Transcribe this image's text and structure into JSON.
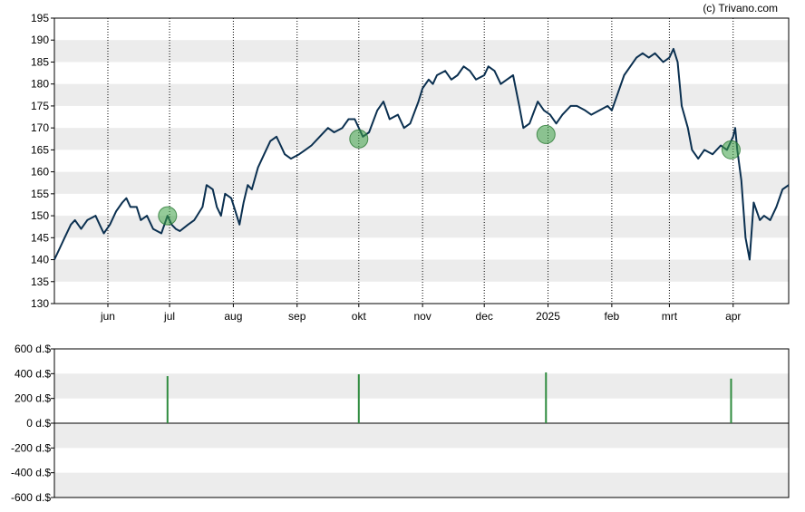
{
  "credit": "(c) Trivano.com",
  "chart_data": [
    {
      "type": "line",
      "title": "",
      "grid": true,
      "ylim": [
        130,
        195
      ],
      "yticks": [
        195,
        190,
        185,
        180,
        175,
        170,
        165,
        160,
        155,
        150,
        145,
        140,
        135,
        130
      ],
      "xlim": [
        "2024-05-06",
        "2025-04-28"
      ],
      "month_ticks": [
        {
          "label": "jun",
          "date": "2024-06-01"
        },
        {
          "label": "jul",
          "date": "2024-07-01"
        },
        {
          "label": "aug",
          "date": "2024-08-01"
        },
        {
          "label": "sep",
          "date": "2024-09-01"
        },
        {
          "label": "okt",
          "date": "2024-10-01"
        },
        {
          "label": "nov",
          "date": "2024-11-01"
        },
        {
          "label": "dec",
          "date": "2024-12-01"
        },
        {
          "label": "2025",
          "date": "2025-01-01"
        },
        {
          "label": "feb",
          "date": "2025-02-01"
        },
        {
          "label": "mrt",
          "date": "2025-03-01"
        },
        {
          "label": "apr",
          "date": "2025-04-01"
        }
      ],
      "series": [
        {
          "color": "#0b3050",
          "x": [
            "2024-05-06",
            "2024-05-09",
            "2024-05-11",
            "2024-05-14",
            "2024-05-16",
            "2024-05-19",
            "2024-05-22",
            "2024-05-26",
            "2024-05-28",
            "2024-05-30",
            "2024-06-02",
            "2024-06-05",
            "2024-06-08",
            "2024-06-10",
            "2024-06-12",
            "2024-06-15",
            "2024-06-17",
            "2024-06-20",
            "2024-06-23",
            "2024-06-27",
            "2024-06-30",
            "2024-07-02",
            "2024-07-04",
            "2024-07-06",
            "2024-07-10",
            "2024-07-13",
            "2024-07-17",
            "2024-07-19",
            "2024-07-22",
            "2024-07-24",
            "2024-07-26",
            "2024-07-28",
            "2024-07-31",
            "2024-08-02",
            "2024-08-04",
            "2024-08-06",
            "2024-08-08",
            "2024-08-10",
            "2024-08-13",
            "2024-08-16",
            "2024-08-19",
            "2024-08-22",
            "2024-08-24",
            "2024-08-26",
            "2024-08-29",
            "2024-09-02",
            "2024-09-05",
            "2024-09-08",
            "2024-09-12",
            "2024-09-16",
            "2024-09-19",
            "2024-09-23",
            "2024-09-26",
            "2024-09-29",
            "2024-10-03",
            "2024-10-06",
            "2024-10-10",
            "2024-10-13",
            "2024-10-16",
            "2024-10-20",
            "2024-10-23",
            "2024-10-26",
            "2024-10-30",
            "2024-11-01",
            "2024-11-04",
            "2024-11-06",
            "2024-11-08",
            "2024-11-12",
            "2024-11-15",
            "2024-11-18",
            "2024-11-21",
            "2024-11-24",
            "2024-11-27",
            "2024-12-01",
            "2024-12-03",
            "2024-12-06",
            "2024-12-09",
            "2024-12-12",
            "2024-12-15",
            "2024-12-18",
            "2024-12-20",
            "2024-12-23",
            "2024-12-27",
            "2024-12-30",
            "2025-01-02",
            "2025-01-05",
            "2025-01-08",
            "2025-01-12",
            "2025-01-15",
            "2025-01-19",
            "2025-01-22",
            "2025-01-26",
            "2025-01-30",
            "2025-02-01",
            "2025-02-04",
            "2025-02-07",
            "2025-02-10",
            "2025-02-13",
            "2025-02-16",
            "2025-02-19",
            "2025-02-22",
            "2025-02-26",
            "2025-03-01",
            "2025-03-03",
            "2025-03-05",
            "2025-03-07",
            "2025-03-10",
            "2025-03-12",
            "2025-03-15",
            "2025-03-18",
            "2025-03-22",
            "2025-03-26",
            "2025-03-29",
            "2025-04-01",
            "2025-04-02",
            "2025-04-03",
            "2025-04-05",
            "2025-04-07",
            "2025-04-09",
            "2025-04-11",
            "2025-04-14",
            "2025-04-16",
            "2025-04-19",
            "2025-04-22",
            "2025-04-25",
            "2025-04-28"
          ],
          "y": [
            140,
            143,
            145,
            148,
            149,
            147,
            149,
            150,
            148,
            146,
            148,
            151,
            153,
            154,
            152,
            152,
            149,
            150,
            147,
            146,
            150,
            148,
            147,
            146.5,
            148,
            149,
            152,
            157,
            156,
            152,
            150,
            155,
            154,
            151,
            148,
            153,
            157,
            156,
            161,
            164,
            167,
            168,
            166,
            164,
            163,
            164,
            165,
            166,
            168,
            170,
            169,
            170,
            172,
            172,
            168,
            169,
            174,
            176,
            172,
            173,
            170,
            171,
            176,
            179,
            181,
            180,
            182,
            183,
            181,
            182,
            184,
            183,
            181,
            182,
            184,
            183,
            180,
            181,
            182,
            175,
            170,
            171,
            176,
            174,
            173,
            171,
            173,
            175,
            175,
            174,
            173,
            174,
            175,
            174,
            178,
            182,
            184,
            186,
            187,
            186,
            187,
            185,
            186,
            188,
            185,
            175,
            170,
            165,
            163,
            165,
            164,
            166,
            165,
            168,
            170,
            165,
            158,
            145,
            140,
            153,
            149,
            150,
            149,
            152,
            156,
            157
          ]
        }
      ],
      "events": [
        {
          "date": "2024-06-30",
          "y": 150
        },
        {
          "date": "2024-10-01",
          "y": 167.5
        },
        {
          "date": "2024-12-31",
          "y": 168.5
        },
        {
          "date": "2025-03-31",
          "y": 165
        }
      ]
    },
    {
      "type": "bar",
      "ylim": [
        -600,
        600
      ],
      "yticks": [
        "600 d.$",
        "400 d.$",
        "200 d.$",
        "0 d.$",
        "-200 d.$",
        "-400 d.$",
        "-600 d.$"
      ],
      "ytick_values": [
        600,
        400,
        200,
        0,
        -200,
        -400,
        -600
      ],
      "color": "#2e8b3e",
      "x": [
        "2024-06-30",
        "2024-10-01",
        "2024-12-31",
        "2025-03-31"
      ],
      "values": [
        380,
        395,
        410,
        360
      ]
    }
  ]
}
